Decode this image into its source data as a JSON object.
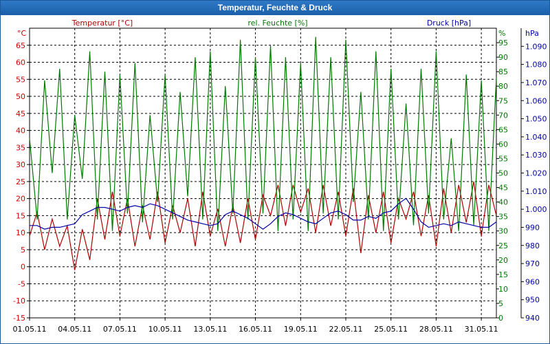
{
  "window": {
    "title": "Temperatur, Feuchte & Druck"
  },
  "chart_data": {
    "type": "line",
    "title": "Temperatur, Feuchte & Druck",
    "x": {
      "tick_labels": [
        "01.05.11",
        "04.05.11",
        "07.05.11",
        "10.05.11",
        "13.05.11",
        "16.05.11",
        "19.05.11",
        "22.05.11",
        "25.05.11",
        "28.05.11",
        "31.05.11"
      ],
      "range": [
        "01.05.11",
        "01.06.11"
      ],
      "tick_step_days": 3
    },
    "axes": {
      "temperature": {
        "side": "left",
        "unit": "°C",
        "range": [
          -15,
          70
        ],
        "ticks": [
          -15,
          -10,
          -5,
          0,
          5,
          10,
          15,
          20,
          25,
          30,
          35,
          40,
          45,
          50,
          55,
          60,
          65
        ],
        "color": "#cc0000"
      },
      "humidity": {
        "side": "right",
        "unit": "%",
        "range": [
          0,
          100
        ],
        "ticks": [
          0,
          5,
          10,
          15,
          20,
          25,
          30,
          35,
          40,
          45,
          50,
          55,
          60,
          65,
          70,
          75,
          80,
          85,
          90,
          95
        ],
        "color": "#007a00"
      },
      "pressure": {
        "side": "right",
        "unit": "hPa",
        "range": [
          940,
          1100
        ],
        "ticks": [
          "940",
          "950",
          "960",
          "970",
          "980",
          "990",
          "1.000",
          "1.010",
          "1.020",
          "1.030",
          "1.040",
          "1.050",
          "1.060",
          "1.070",
          "1.080",
          "1.090"
        ],
        "color": "#0000aa"
      }
    },
    "grid": true,
    "legend": [
      "Temperatur [°C]",
      "rel. Feuchte [%]",
      "Druck [hPa]"
    ],
    "series": [
      {
        "name": "Temperatur [°C]",
        "axis": "temperature",
        "color": "#b00000",
        "x": [
          0,
          0.5,
          1,
          1.5,
          2,
          2.5,
          3,
          3.5,
          4,
          4.5,
          5,
          5.5,
          6,
          6.5,
          7,
          7.5,
          8,
          8.5,
          9,
          9.5,
          10,
          10.5,
          11,
          11.5,
          12,
          12.5,
          13,
          13.5,
          14,
          14.5,
          15,
          15.5,
          16,
          16.5,
          17,
          17.5,
          18,
          18.5,
          19,
          19.5,
          20,
          20.5,
          21,
          21.5,
          22,
          22.5,
          23,
          23.5,
          24,
          24.5,
          25,
          25.5,
          26,
          26.5,
          27,
          27.5,
          28,
          28.5,
          29,
          29.5,
          30,
          30.5,
          31
        ],
        "y": [
          9,
          16,
          5,
          14,
          6,
          12,
          -1,
          11,
          2,
          20,
          8,
          22,
          9,
          20,
          6,
          18,
          8,
          22,
          7,
          18,
          10,
          20,
          6,
          22,
          9,
          17,
          6,
          18,
          7,
          20,
          8,
          21,
          15,
          24,
          12,
          24,
          16,
          23,
          10,
          24,
          12,
          22,
          9,
          23,
          4,
          21,
          10,
          22,
          7,
          20,
          14,
          22,
          9,
          21,
          6,
          23,
          10,
          24,
          13,
          25,
          9,
          24,
          15
        ]
      },
      {
        "name": "rel. Feuchte [%]",
        "axis": "humidity",
        "color": "#007a00",
        "x": [
          0,
          0.5,
          1,
          1.5,
          2,
          2.5,
          3,
          3.5,
          4,
          4.5,
          5,
          5.5,
          6,
          6.5,
          7,
          7.5,
          8,
          8.5,
          9,
          9.5,
          10,
          10.5,
          11,
          11.5,
          12,
          12.5,
          13,
          13.5,
          14,
          14.5,
          15,
          15.5,
          16,
          16.5,
          17,
          17.5,
          18,
          18.5,
          19,
          19.5,
          20,
          20.5,
          21,
          21.5,
          22,
          22.5,
          23,
          23.5,
          24,
          24.5,
          25,
          25.5,
          26,
          26.5,
          27,
          27.5,
          28,
          28.5,
          29,
          29.5,
          30,
          30.5,
          31
        ],
        "y": [
          62,
          34,
          82,
          50,
          86,
          34,
          70,
          48,
          92,
          34,
          85,
          30,
          84,
          36,
          88,
          33,
          70,
          40,
          84,
          34,
          78,
          42,
          90,
          34,
          92,
          30,
          80,
          36,
          96,
          34,
          90,
          36,
          94,
          30,
          90,
          34,
          88,
          30,
          97,
          36,
          90,
          34,
          96,
          40,
          78,
          34,
          92,
          30,
          86,
          34,
          74,
          32,
          86,
          36,
          92,
          34,
          62,
          30,
          84,
          32,
          82,
          30,
          83
        ]
      },
      {
        "name": "Druck [hPa]",
        "axis": "pressure",
        "color": "#0000aa",
        "x": [
          0,
          0.5,
          1,
          1.5,
          2,
          2.5,
          3,
          3.5,
          4,
          4.5,
          5,
          5.5,
          6,
          6.5,
          7,
          7.5,
          8,
          8.5,
          9,
          9.5,
          10,
          10.5,
          11,
          11.5,
          12,
          12.5,
          13,
          13.5,
          14,
          14.5,
          15,
          15.5,
          16,
          16.5,
          17,
          17.5,
          18,
          18.5,
          19,
          19.5,
          20,
          20.5,
          21,
          21.5,
          22,
          22.5,
          23,
          23.5,
          24,
          24.5,
          25,
          25.5,
          26,
          26.5,
          27,
          27.5,
          28,
          28.5,
          29,
          29.5,
          30,
          30.5,
          31
        ],
        "y": [
          991,
          991,
          989,
          990,
          990,
          991,
          992,
          997,
          999,
          1001,
          1001,
          1000,
          999,
          1001,
          1002,
          1001,
          1003,
          1002,
          1000,
          998,
          996,
          994,
          993,
          992,
          991,
          992,
          997,
          999,
          997,
          995,
          992,
          989,
          992,
          996,
          998,
          997,
          995,
          993,
          992,
          995,
          998,
          999,
          997,
          994,
          994,
          996,
          995,
          998,
          999,
          1003,
          1006,
          1000,
          993,
          990,
          991,
          992,
          991,
          993,
          992,
          991,
          990,
          990,
          993
        ]
      }
    ]
  }
}
